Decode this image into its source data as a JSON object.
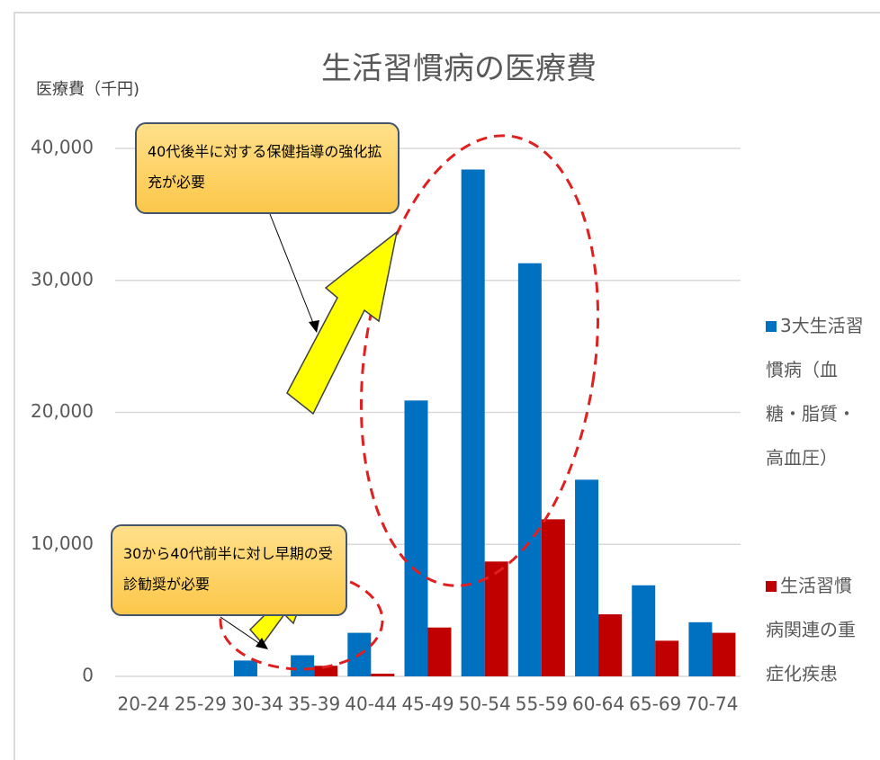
{
  "chart_data": {
    "type": "bar",
    "title": "生活習慣病の医療費",
    "y_label": "医療費（千円)",
    "categories": [
      "20-24",
      "25-29",
      "30-34",
      "35-39",
      "40-44",
      "45-49",
      "50-54",
      "55-59",
      "60-64",
      "65-69",
      "70-74"
    ],
    "series": [
      {
        "name": "3大生活習慣病（血糖・脂質・高血圧）",
        "color": "#0070c0",
        "values": [
          0,
          0,
          1200,
          1600,
          3300,
          20900,
          38400,
          31300,
          14900,
          6900,
          4100
        ]
      },
      {
        "name": "生活習慣病関連の重症化疾患",
        "color": "#c00000",
        "values": [
          0,
          0,
          0,
          800,
          200,
          3700,
          8700,
          11900,
          4700,
          2700,
          3300
        ]
      }
    ],
    "ylim": [
      0,
      40000
    ],
    "yticks": [
      0,
      {
        "value": 10000,
        "label": "10,000"
      },
      {
        "value": 20000,
        "label": "20,000"
      },
      {
        "value": 30000,
        "label": "30,000"
      },
      {
        "value": 40000,
        "label": "40,000"
      }
    ],
    "grid": true,
    "annotations": [
      "40代後半に対する保健指導の強化拡充が必要",
      "30から40代前半に対し早期の受診勧奨が必要"
    ]
  }
}
